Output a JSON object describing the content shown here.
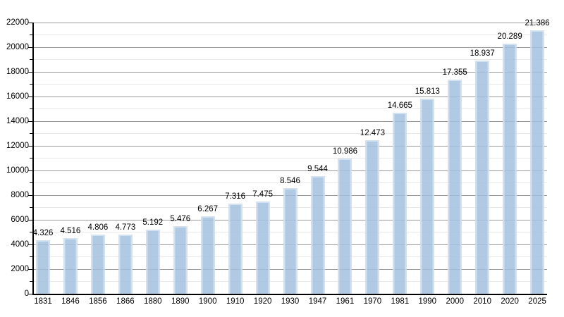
{
  "chart": {
    "background": "#ffffff"
  },
  "chart_data": {
    "type": "bar",
    "title": "",
    "xlabel": "",
    "ylabel": "",
    "categories": [
      "1831",
      "1846",
      "1856",
      "1866",
      "1880",
      "1890",
      "1900",
      "1910",
      "1920",
      "1930",
      "1947",
      "1961",
      "1970",
      "1981",
      "1990",
      "2000",
      "2010",
      "2020",
      "2025"
    ],
    "values": [
      4326,
      4516,
      4806,
      4773,
      5192,
      5476,
      6267,
      7316,
      7475,
      8546,
      9544,
      10986,
      12473,
      14665,
      15813,
      17355,
      18937,
      20289,
      21386
    ],
    "value_labels": [
      "4.326",
      "4.516",
      "4.806",
      "4.773",
      "5.192",
      "5.476",
      "6.267",
      "7.316",
      "7.475",
      "8.546",
      "9.544",
      "10.986",
      "12.473",
      "14.665",
      "15.813",
      "17.355",
      "18.937",
      "20.289",
      "21.386"
    ],
    "ylim": [
      0,
      22000
    ],
    "y_major_step": 2000,
    "y_minor_step": 1000,
    "y_tick_labels": [
      "0",
      "2000",
      "4000",
      "6000",
      "8000",
      "10000",
      "12000",
      "14000",
      "16000",
      "18000",
      "20000",
      "22000"
    ],
    "grid": "major-and-minor",
    "legend_position": "none",
    "colors": {
      "bar_fill": "#a2c1df",
      "bar_fill_alpha": 0.85,
      "bar_edge": "#cedded",
      "bar_edge_alpha": 0.9,
      "bar_top_edge": "#d5e3f1",
      "bar_top_edge_alpha": 0.95,
      "grid_major": "#999999",
      "grid_minor": "#e8e8e8",
      "axis": "#000000",
      "label_text": "#000000"
    }
  }
}
